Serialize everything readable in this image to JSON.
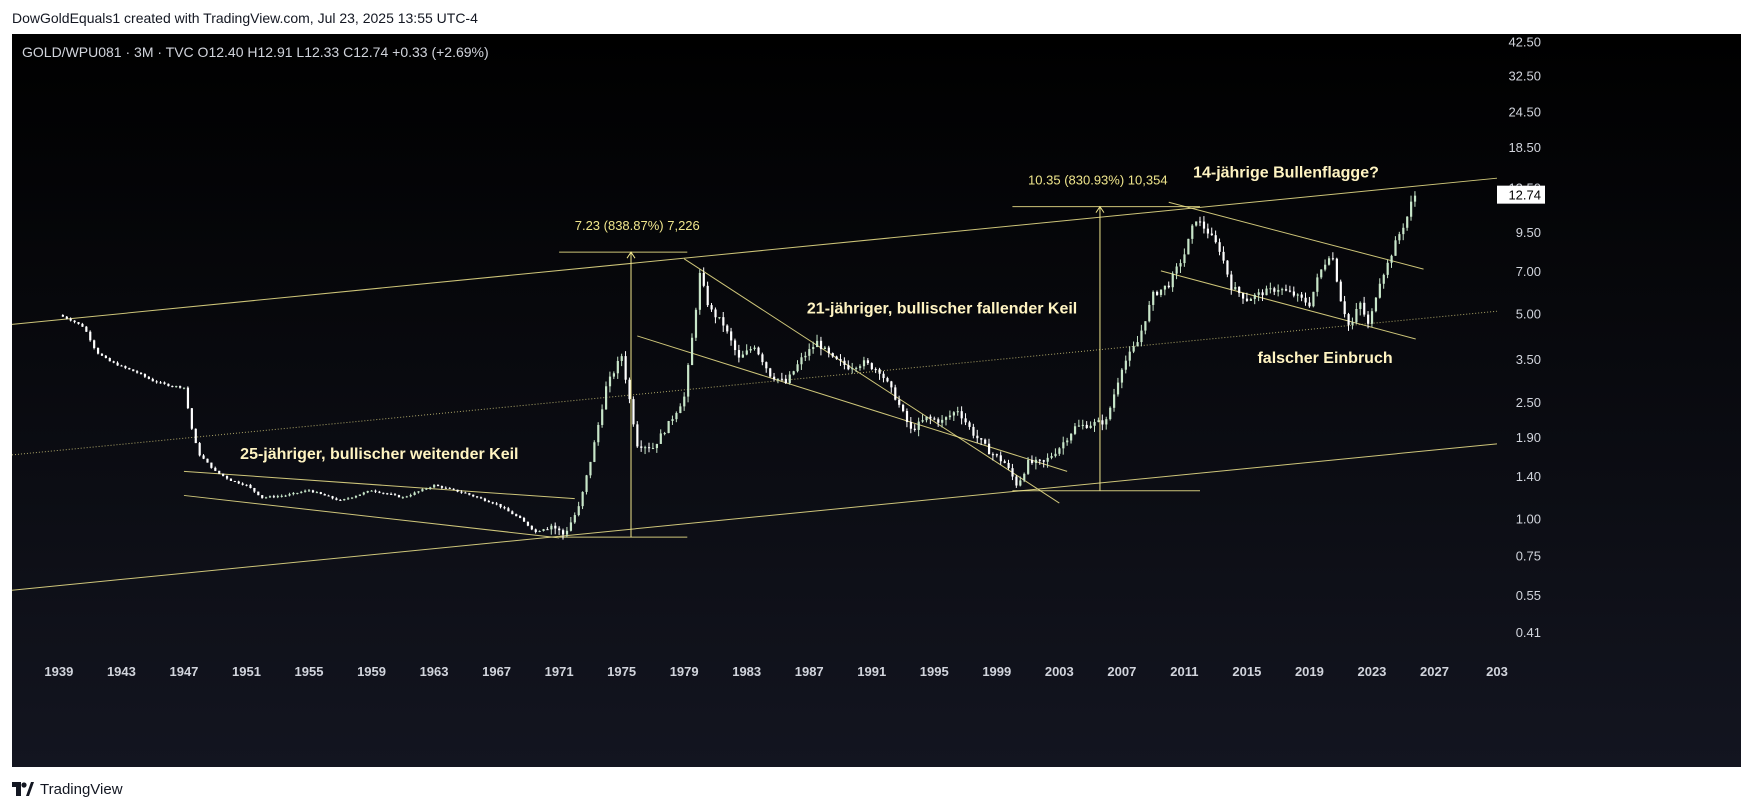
{
  "header": {
    "caption": "DowGoldEquals1 created with TradingView.com, Jul 23, 2025 13:55 UTC-4",
    "symbol_line": "GOLD/WPU081 · 3M · TVC  O12.40  H12.91  L12.33  C12.74  +0.33 (+2.69%)"
  },
  "footer": {
    "brand": "TradingView",
    "icon": "tradingview-logo-icon"
  },
  "colors": {
    "background": "#000000",
    "up": "#c8e6c9",
    "down": "#ffffff",
    "line": "#f0e68c",
    "price_label_bg": "#ffffff"
  },
  "chart_data": {
    "type": "candlestick",
    "symbol": "GOLD/WPU081",
    "interval": "3M",
    "source": "TVC",
    "y_scale": "log",
    "ylim": [
      0.34,
      45
    ],
    "xlim": [
      1936,
      2031
    ],
    "last_price": 12.74,
    "last_price_label": "12.74",
    "ohlc": {
      "open": 12.4,
      "high": 12.91,
      "low": 12.33,
      "close": 12.74,
      "change": 0.33,
      "change_pct": 2.69
    },
    "y_ticks": [
      "42.50",
      "32.50",
      "24.50",
      "18.50",
      "13.50",
      "9.50",
      "7.00",
      "5.00",
      "3.50",
      "2.50",
      "1.90",
      "1.40",
      "1.00",
      "0.75",
      "0.55",
      "0.41"
    ],
    "x_ticks": [
      "1939",
      "1943",
      "1947",
      "1951",
      "1955",
      "1959",
      "1963",
      "1967",
      "1971",
      "1975",
      "1979",
      "1983",
      "1987",
      "1991",
      "1995",
      "1999",
      "2003",
      "2007",
      "2011",
      "2015",
      "2019",
      "2023",
      "2027",
      "203"
    ],
    "price_path": [
      [
        1939.0,
        4.95
      ],
      [
        1939.8,
        4.75
      ],
      [
        1940.6,
        4.5
      ],
      [
        1941.4,
        3.7
      ],
      [
        1942.2,
        3.45
      ],
      [
        1943.0,
        3.3
      ],
      [
        1944.0,
        3.15
      ],
      [
        1945.0,
        2.95
      ],
      [
        1946.0,
        2.85
      ],
      [
        1947.0,
        2.8
      ],
      [
        1947.6,
        1.9
      ],
      [
        1948.0,
        1.65
      ],
      [
        1949.0,
        1.45
      ],
      [
        1950.0,
        1.35
      ],
      [
        1951.0,
        1.3
      ],
      [
        1952.0,
        1.18
      ],
      [
        1953.5,
        1.2
      ],
      [
        1955.0,
        1.25
      ],
      [
        1957.0,
        1.15
      ],
      [
        1959.0,
        1.25
      ],
      [
        1961.0,
        1.18
      ],
      [
        1963.0,
        1.3
      ],
      [
        1965.0,
        1.22
      ],
      [
        1967.0,
        1.12
      ],
      [
        1968.5,
        1.0
      ],
      [
        1969.5,
        0.9
      ],
      [
        1970.5,
        0.95
      ],
      [
        1971.3,
        0.88
      ],
      [
        1972.3,
        1.1
      ],
      [
        1973.2,
        1.75
      ],
      [
        1974.0,
        2.8
      ],
      [
        1975.0,
        3.6
      ],
      [
        1976.0,
        1.8
      ],
      [
        1977.0,
        1.75
      ],
      [
        1978.0,
        2.1
      ],
      [
        1979.0,
        2.6
      ],
      [
        1979.6,
        4.5
      ],
      [
        1980.0,
        6.8
      ],
      [
        1980.6,
        5.2
      ],
      [
        1981.5,
        4.6
      ],
      [
        1982.5,
        3.5
      ],
      [
        1983.5,
        3.9
      ],
      [
        1984.5,
        3.1
      ],
      [
        1985.5,
        2.9
      ],
      [
        1986.5,
        3.5
      ],
      [
        1987.5,
        4.0
      ],
      [
        1988.5,
        3.5
      ],
      [
        1989.5,
        3.3
      ],
      [
        1990.5,
        3.4
      ],
      [
        1991.5,
        3.2
      ],
      [
        1992.5,
        2.6
      ],
      [
        1993.5,
        2.0
      ],
      [
        1994.5,
        2.2
      ],
      [
        1995.5,
        2.15
      ],
      [
        1996.5,
        2.35
      ],
      [
        1997.5,
        1.95
      ],
      [
        1998.5,
        1.7
      ],
      [
        1999.5,
        1.55
      ],
      [
        2000.3,
        1.3
      ],
      [
        2001.0,
        1.55
      ],
      [
        2002.0,
        1.55
      ],
      [
        2003.0,
        1.75
      ],
      [
        2004.0,
        2.05
      ],
      [
        2005.0,
        2.1
      ],
      [
        2006.0,
        2.15
      ],
      [
        2007.0,
        3.3
      ],
      [
        2008.0,
        4.0
      ],
      [
        2009.0,
        5.8
      ],
      [
        2010.0,
        6.3
      ],
      [
        2011.0,
        8.0
      ],
      [
        2011.7,
        10.6
      ],
      [
        2012.5,
        9.5
      ],
      [
        2013.3,
        8.2
      ],
      [
        2014.0,
        6.2
      ],
      [
        2015.0,
        5.6
      ],
      [
        2016.0,
        5.9
      ],
      [
        2017.0,
        6.1
      ],
      [
        2018.0,
        5.8
      ],
      [
        2019.0,
        5.4
      ],
      [
        2019.6,
        6.8
      ],
      [
        2020.4,
        8.2
      ],
      [
        2021.0,
        5.6
      ],
      [
        2021.6,
        4.4
      ],
      [
        2022.2,
        5.5
      ],
      [
        2022.8,
        4.5
      ],
      [
        2023.4,
        6.3
      ],
      [
        2024.0,
        7.4
      ],
      [
        2024.6,
        9.0
      ],
      [
        2025.2,
        10.5
      ],
      [
        2025.6,
        12.4
      ],
      [
        2025.8,
        12.74
      ]
    ],
    "annotations": [
      {
        "text": "25-jähriger, bullischer weitender Keil",
        "x": 1959.5,
        "y": 1.6
      },
      {
        "text": "21-jähriger, bullischer fallender Keil",
        "x": 1995.5,
        "y": 5.0
      },
      {
        "text": "14-jährige Bullenflagge?",
        "x": 2017.5,
        "y": 14.6
      },
      {
        "text": "falscher Einbruch",
        "x": 2020.0,
        "y": 3.4
      }
    ],
    "measures": [
      {
        "label": "7.23 (838.87%) 7,226",
        "x": 1975.6,
        "from": 0.865,
        "to": 8.11,
        "label_x": 1972.0
      },
      {
        "label": "10.35 (830.93%) 10,354",
        "x": 2005.6,
        "from": 1.245,
        "to": 11.6,
        "label_x": 2001.0
      }
    ],
    "trend_lines": [
      [
        1936,
        4.6,
        2031,
        14.5
      ],
      [
        1936,
        1.65,
        2031,
        5.1
      ],
      [
        1936,
        0.57,
        2031,
        1.8
      ],
      [
        1947.0,
        1.45,
        1972.0,
        1.17
      ],
      [
        1947.0,
        1.2,
        1971.0,
        0.86
      ],
      [
        1976.0,
        4.2,
        2003.5,
        1.45
      ],
      [
        1979.0,
        7.7,
        2003.0,
        1.13
      ],
      [
        2010.0,
        12.0,
        2026.3,
        7.1
      ],
      [
        2009.5,
        7.0,
        2025.8,
        4.1
      ],
      [
        1971.0,
        8.11,
        1979.2,
        8.11
      ],
      [
        1971.0,
        0.865,
        1979.2,
        0.865
      ],
      [
        2000.0,
        11.6,
        2012.0,
        11.6
      ],
      [
        2000.0,
        1.245,
        2012.0,
        1.245
      ]
    ]
  }
}
